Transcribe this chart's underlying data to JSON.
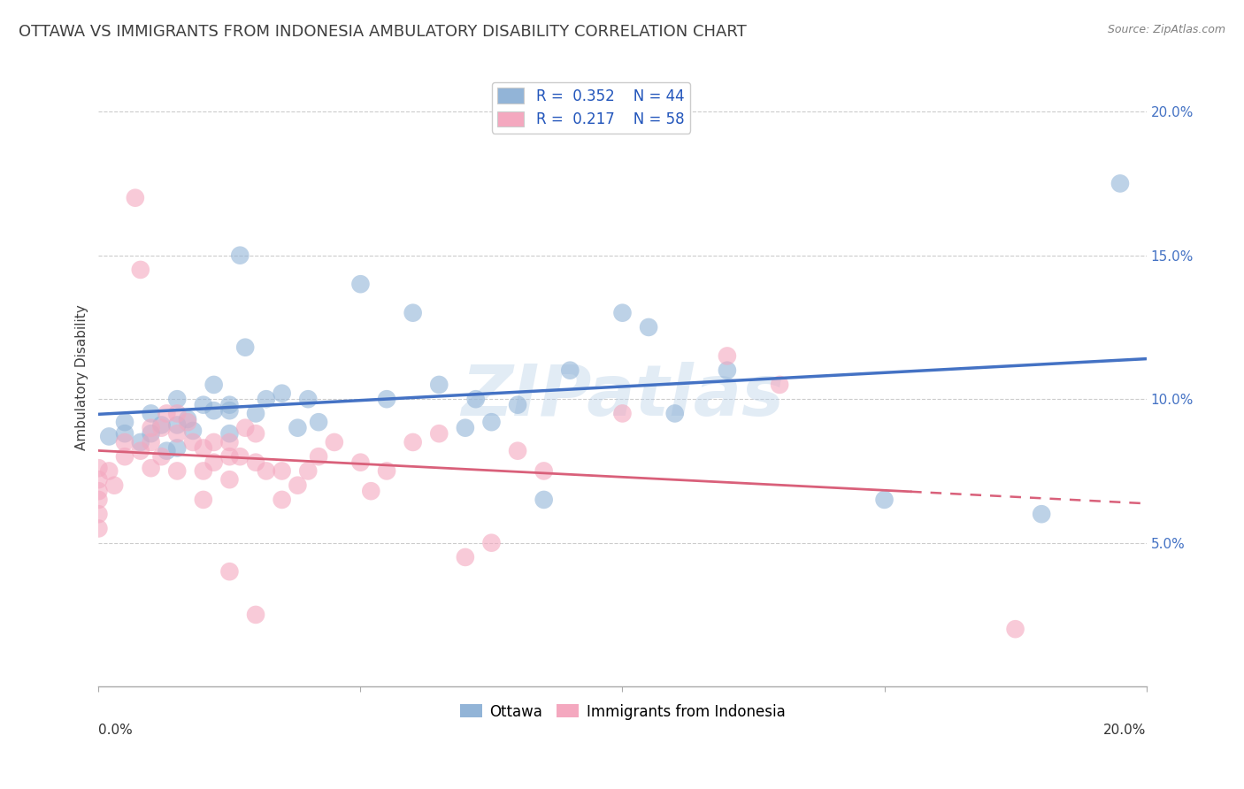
{
  "title": "OTTAWA VS IMMIGRANTS FROM INDONESIA AMBULATORY DISABILITY CORRELATION CHART",
  "source": "Source: ZipAtlas.com",
  "xlabel": "",
  "ylabel": "Ambulatory Disability",
  "xlim": [
    0.0,
    0.2
  ],
  "ylim": [
    0.0,
    0.215
  ],
  "xticks": [
    0.0,
    0.2
  ],
  "xtick_labels": [
    "0.0%",
    "20.0%"
  ],
  "xticks_minor": [
    0.05,
    0.1,
    0.15
  ],
  "ytick_positions": [
    0.05,
    0.1,
    0.15,
    0.2
  ],
  "ytick_labels": [
    "5.0%",
    "10.0%",
    "15.0%",
    "20.0%"
  ],
  "legend_bottom": [
    "Ottawa",
    "Immigrants from Indonesia"
  ],
  "blue_color": "#92b4d7",
  "pink_color": "#f4a8bf",
  "line_blue": "#4472c4",
  "line_pink": "#d9607a",
  "watermark": "ZIPatlas",
  "ottawa_scatter": [
    [
      0.002,
      0.087
    ],
    [
      0.005,
      0.092
    ],
    [
      0.005,
      0.088
    ],
    [
      0.008,
      0.085
    ],
    [
      0.01,
      0.095
    ],
    [
      0.01,
      0.088
    ],
    [
      0.012,
      0.091
    ],
    [
      0.013,
      0.082
    ],
    [
      0.015,
      0.091
    ],
    [
      0.015,
      0.1
    ],
    [
      0.015,
      0.083
    ],
    [
      0.017,
      0.093
    ],
    [
      0.018,
      0.089
    ],
    [
      0.02,
      0.098
    ],
    [
      0.022,
      0.096
    ],
    [
      0.022,
      0.105
    ],
    [
      0.025,
      0.088
    ],
    [
      0.025,
      0.096
    ],
    [
      0.027,
      0.15
    ],
    [
      0.028,
      0.118
    ],
    [
      0.03,
      0.095
    ],
    [
      0.032,
      0.1
    ],
    [
      0.035,
      0.102
    ],
    [
      0.038,
      0.09
    ],
    [
      0.04,
      0.1
    ],
    [
      0.042,
      0.092
    ],
    [
      0.05,
      0.14
    ],
    [
      0.055,
      0.1
    ],
    [
      0.06,
      0.13
    ],
    [
      0.065,
      0.105
    ],
    [
      0.07,
      0.09
    ],
    [
      0.072,
      0.1
    ],
    [
      0.075,
      0.092
    ],
    [
      0.08,
      0.098
    ],
    [
      0.085,
      0.065
    ],
    [
      0.09,
      0.11
    ],
    [
      0.1,
      0.13
    ],
    [
      0.105,
      0.125
    ],
    [
      0.11,
      0.095
    ],
    [
      0.12,
      0.11
    ],
    [
      0.15,
      0.065
    ],
    [
      0.18,
      0.06
    ],
    [
      0.195,
      0.175
    ],
    [
      0.025,
      0.098
    ]
  ],
  "indonesia_scatter": [
    [
      0.0,
      0.055
    ],
    [
      0.0,
      0.06
    ],
    [
      0.0,
      0.065
    ],
    [
      0.0,
      0.068
    ],
    [
      0.0,
      0.072
    ],
    [
      0.0,
      0.076
    ],
    [
      0.002,
      0.075
    ],
    [
      0.003,
      0.07
    ],
    [
      0.005,
      0.08
    ],
    [
      0.005,
      0.085
    ],
    [
      0.007,
      0.17
    ],
    [
      0.008,
      0.145
    ],
    [
      0.008,
      0.082
    ],
    [
      0.01,
      0.076
    ],
    [
      0.01,
      0.085
    ],
    [
      0.01,
      0.09
    ],
    [
      0.012,
      0.08
    ],
    [
      0.012,
      0.09
    ],
    [
      0.013,
      0.095
    ],
    [
      0.015,
      0.075
    ],
    [
      0.015,
      0.095
    ],
    [
      0.015,
      0.088
    ],
    [
      0.017,
      0.092
    ],
    [
      0.018,
      0.085
    ],
    [
      0.02,
      0.065
    ],
    [
      0.02,
      0.075
    ],
    [
      0.02,
      0.083
    ],
    [
      0.022,
      0.078
    ],
    [
      0.022,
      0.085
    ],
    [
      0.025,
      0.072
    ],
    [
      0.025,
      0.08
    ],
    [
      0.025,
      0.085
    ],
    [
      0.027,
      0.08
    ],
    [
      0.028,
      0.09
    ],
    [
      0.03,
      0.088
    ],
    [
      0.03,
      0.078
    ],
    [
      0.032,
      0.075
    ],
    [
      0.035,
      0.065
    ],
    [
      0.035,
      0.075
    ],
    [
      0.038,
      0.07
    ],
    [
      0.04,
      0.075
    ],
    [
      0.042,
      0.08
    ],
    [
      0.045,
      0.085
    ],
    [
      0.05,
      0.078
    ],
    [
      0.052,
      0.068
    ],
    [
      0.055,
      0.075
    ],
    [
      0.06,
      0.085
    ],
    [
      0.065,
      0.088
    ],
    [
      0.07,
      0.045
    ],
    [
      0.075,
      0.05
    ],
    [
      0.08,
      0.082
    ],
    [
      0.085,
      0.075
    ],
    [
      0.025,
      0.04
    ],
    [
      0.03,
      0.025
    ],
    [
      0.1,
      0.095
    ],
    [
      0.12,
      0.115
    ],
    [
      0.13,
      0.105
    ],
    [
      0.175,
      0.02
    ]
  ],
  "title_color": "#404040",
  "source_color": "#808080",
  "title_fontsize": 13,
  "axis_label_fontsize": 11,
  "tick_fontsize": 11,
  "legend_fontsize": 12
}
